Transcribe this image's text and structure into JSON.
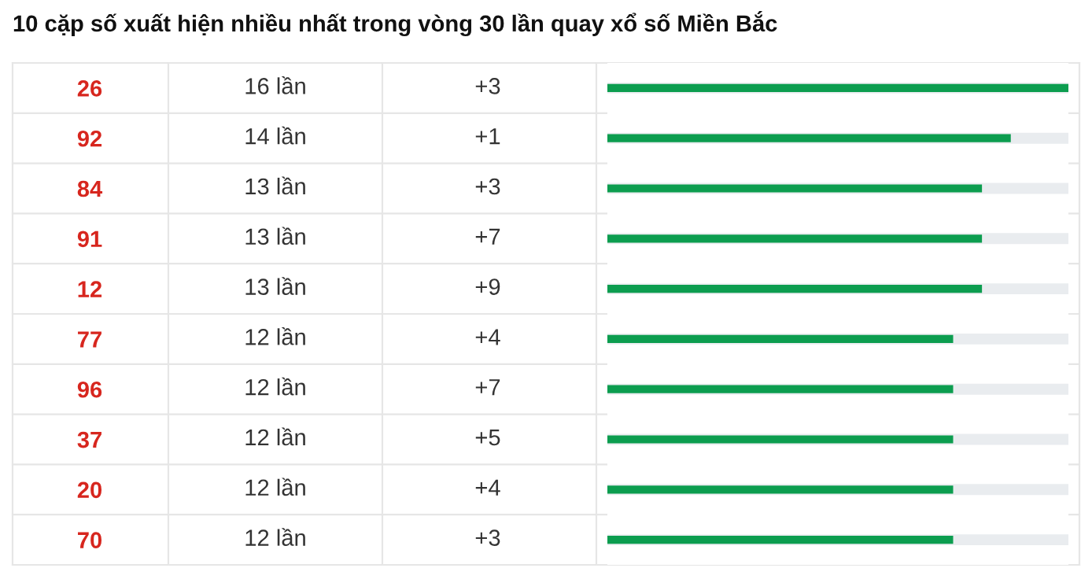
{
  "chart_data": {
    "type": "bar",
    "orientation": "horizontal",
    "title": "10 cặp số xuất hiện nhiều nhất trong vòng 30 lần quay xổ số Miền Bắc",
    "categories": [
      "26",
      "92",
      "84",
      "91",
      "12",
      "77",
      "96",
      "37",
      "20",
      "70"
    ],
    "values": [
      16,
      14,
      13,
      13,
      13,
      12,
      12,
      12,
      12,
      12
    ],
    "value_labels": [
      "16 lần",
      "14 lần",
      "13 lần",
      "13 lần",
      "13 lần",
      "12 lần",
      "12 lần",
      "12 lần",
      "12 lần",
      "12 lần"
    ],
    "color": "#0c9d4f",
    "xlim": [
      0,
      16
    ],
    "tick_labels": "y",
    "grid": "y",
    "legend": false,
    "annotations": [
      "+3",
      "+1",
      "+3",
      "+7",
      "+9",
      "+4",
      "+7",
      "+5",
      "+4",
      "+3"
    ]
  }
}
